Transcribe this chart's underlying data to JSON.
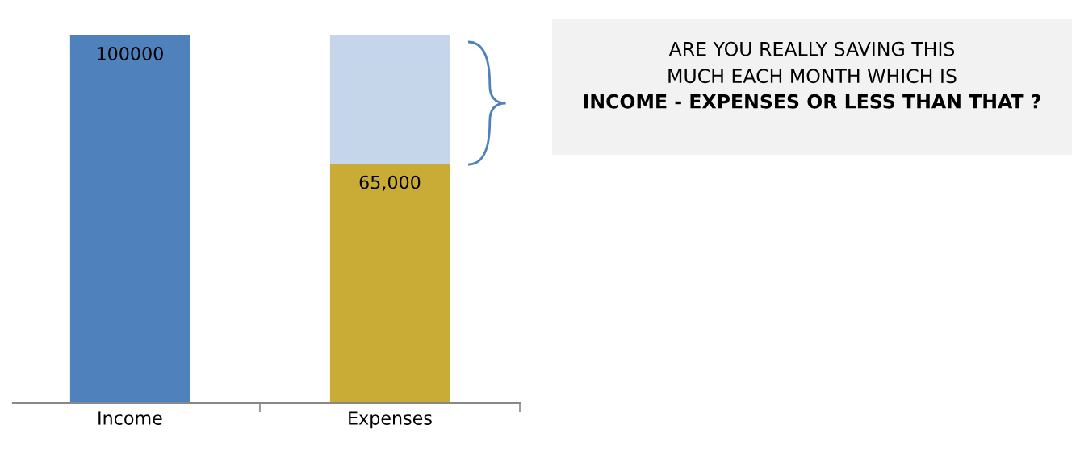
{
  "chart_data": {
    "type": "bar",
    "stacked": true,
    "categories": [
      "Income",
      "Expenses"
    ],
    "series": [
      {
        "colors": [
          "#4f81bd",
          "#c9ac36"
        ],
        "values": [
          100000,
          65000
        ],
        "value_labels": [
          "100000",
          "65,000"
        ]
      },
      {
        "color": "#c6d6ea",
        "values": [
          null,
          35000
        ]
      }
    ],
    "annotations": [
      "ARE YOU REALLY SAVING THIS\nMUCH EACH MONTH WHICH IS",
      "INCOME - EXPENSES OR LESS THAN THAT ?"
    ],
    "grid": false,
    "legend": false
  }
}
